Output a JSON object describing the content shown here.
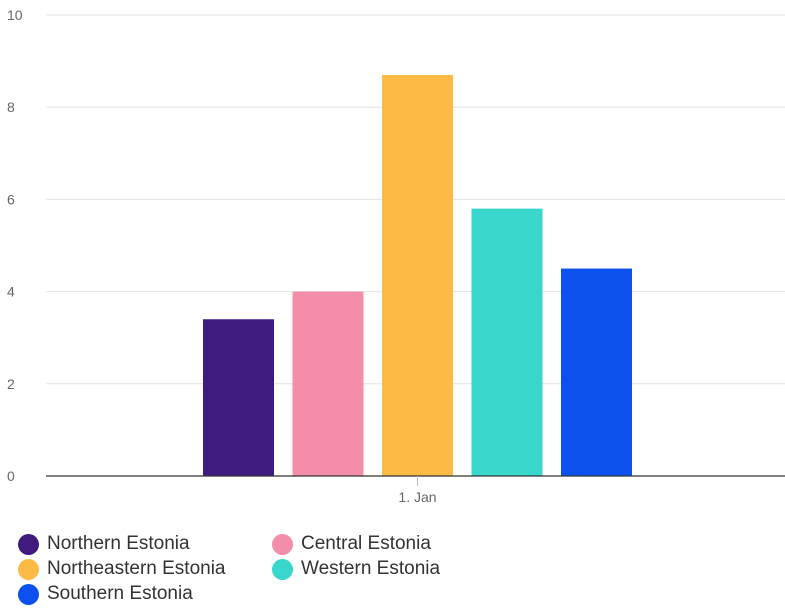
{
  "chart_data": {
    "type": "bar",
    "categories": [
      "1. Jan"
    ],
    "series": [
      {
        "name": "Northern Estonia",
        "values": [
          3.4
        ],
        "color": "#3f1a7f"
      },
      {
        "name": "Central Estonia",
        "values": [
          4.0
        ],
        "color": "#f48da9"
      },
      {
        "name": "Northeastern Estonia",
        "values": [
          8.7
        ],
        "color": "#fdbb46"
      },
      {
        "name": "Western Estonia",
        "values": [
          5.8
        ],
        "color": "#38d6cb"
      },
      {
        "name": "Southern Estonia",
        "values": [
          4.5
        ],
        "color": "#0c51ed"
      }
    ],
    "ylim": [
      0,
      10
    ],
    "yticks": [
      "0",
      "2",
      "4",
      "6",
      "8",
      "10"
    ],
    "grid": true,
    "legend_position": "bottom"
  }
}
